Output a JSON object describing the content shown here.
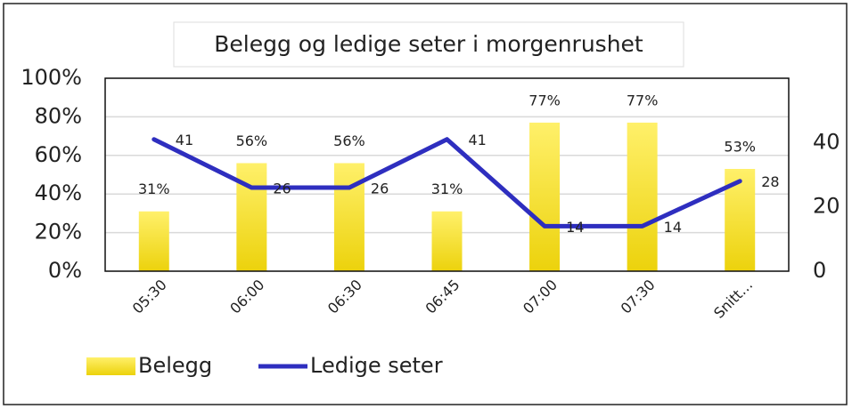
{
  "chart_data": {
    "type": "combo",
    "title": "Belegg og ledige seter i morgenrushet",
    "categories": [
      "05:30",
      "06:00",
      "06:30",
      "06:45",
      "07:00",
      "07:30",
      "Snitt…"
    ],
    "series": [
      {
        "name": "Belegg",
        "type": "bar",
        "color": "#f5dc1e",
        "values": [
          31,
          56,
          56,
          31,
          77,
          77,
          53
        ],
        "value_labels": [
          "31%",
          "56%",
          "56%",
          "31%",
          "77%",
          "77%",
          "53%"
        ]
      },
      {
        "name": "Ledige seter",
        "type": "line",
        "color": "#2e2ebf",
        "axis": "y2",
        "values": [
          41,
          26,
          26,
          41,
          14,
          14,
          28
        ]
      }
    ],
    "ylim": [
      0,
      100
    ],
    "yticks": [
      {
        "value": 0,
        "label": "0%"
      },
      {
        "value": 20,
        "label": "20%"
      },
      {
        "value": 40,
        "label": "40%"
      },
      {
        "value": 60,
        "label": "60%"
      },
      {
        "value": 80,
        "label": "80%"
      },
      {
        "value": 100,
        "label": "100%"
      }
    ],
    "y2lim": [
      0,
      60
    ],
    "y2ticks": [
      0,
      20,
      40
    ],
    "grid": true
  }
}
